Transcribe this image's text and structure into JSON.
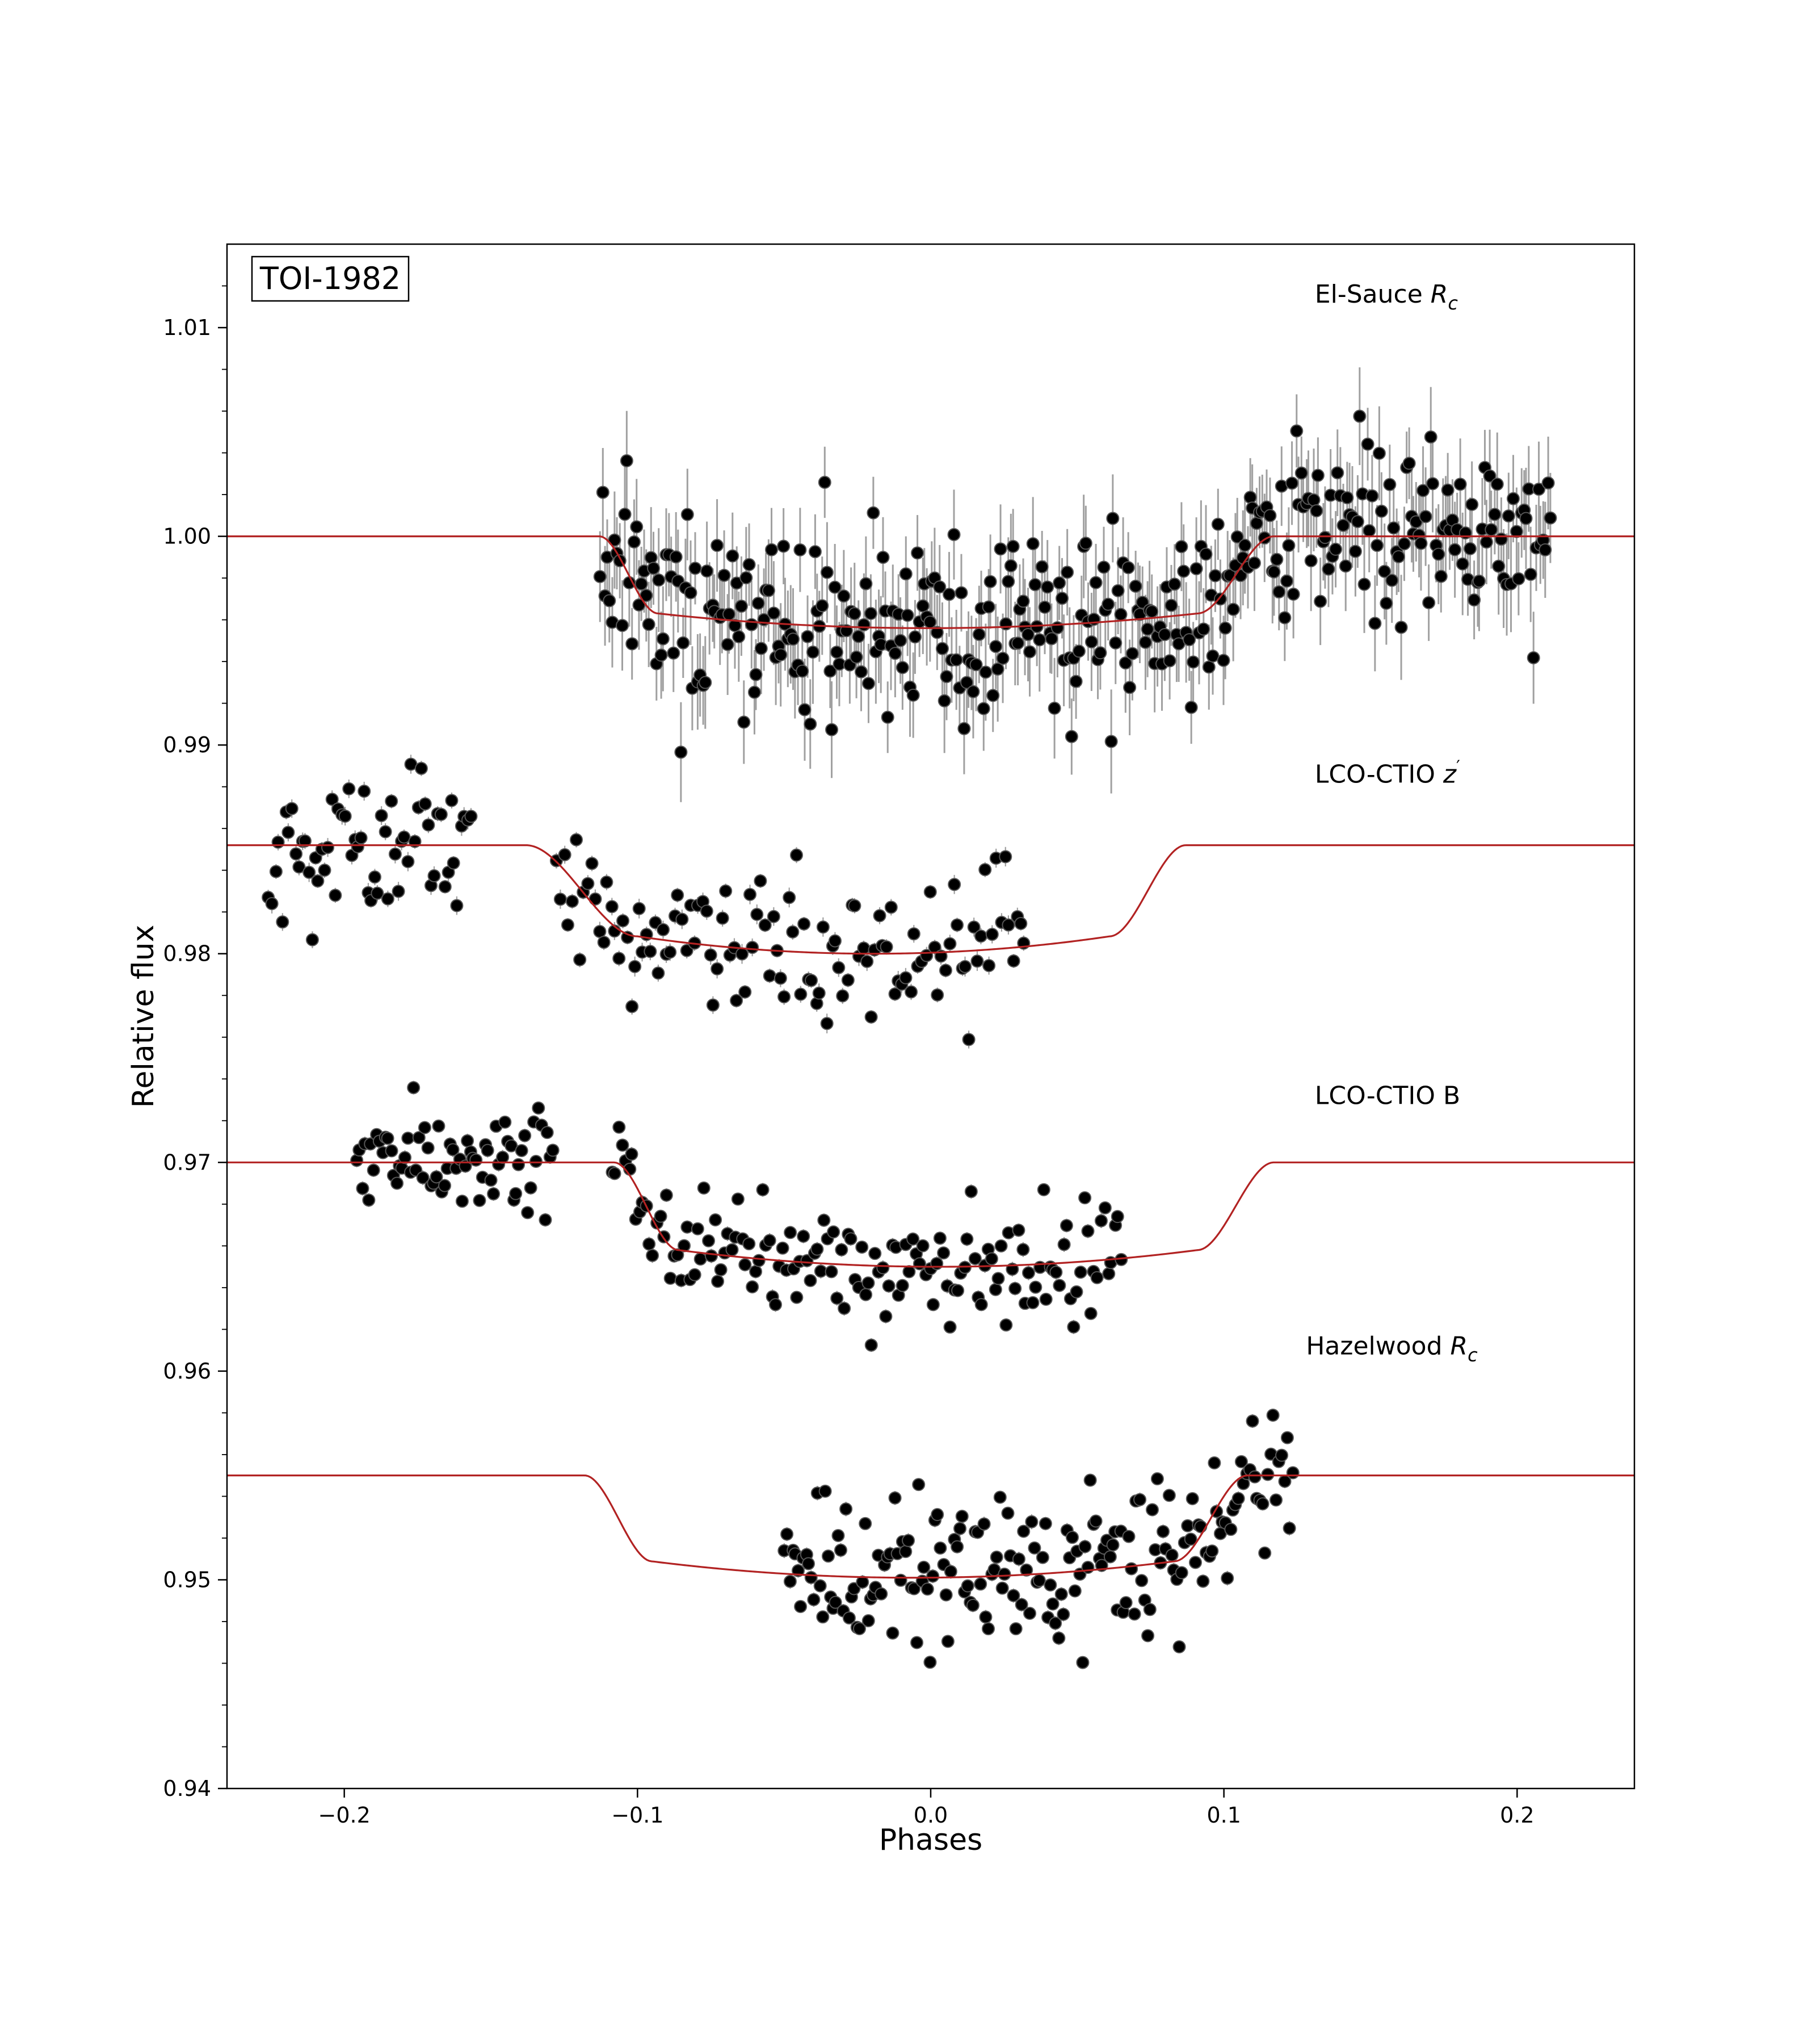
{
  "chart_data": {
    "type": "scatter",
    "title_box": "TOI-1982",
    "xlabel": "Phases",
    "ylabel": "Relative flux",
    "xlim": [
      -0.24,
      0.24
    ],
    "ylim": [
      0.94,
      1.014
    ],
    "xticks": [
      -0.2,
      -0.1,
      0.0,
      0.1,
      0.2
    ],
    "xtick_labels": [
      "−0.2",
      "−0.1",
      "0.0",
      "0.1",
      "0.2"
    ],
    "yticks": [
      0.94,
      0.95,
      0.96,
      0.97,
      0.98,
      0.99,
      1.0,
      1.01
    ],
    "ytick_labels": [
      "0.94",
      "0.95",
      "0.96",
      "0.97",
      "0.98",
      "0.99",
      "1.00",
      "1.01"
    ],
    "grid": false,
    "model_color": "#b22222",
    "point_color": "#000000",
    "errorbar_color": "#a0a0a0",
    "series": [
      {
        "name": "El-Sauce",
        "subscript": "c",
        "label_base": "R",
        "label_style": "italic-subscript",
        "label_anchor": [
          0.131,
          1.0112
        ],
        "baseline": 1.0,
        "depth": 0.0044,
        "ingress_start": -0.113,
        "ingress_end": -0.093,
        "egress_start": 0.091,
        "egress_end": 0.117,
        "x_range": [
          -0.113,
          0.212
        ],
        "n_points": 390,
        "scatter": 0.0022,
        "error": 0.0021,
        "seed": 11
      },
      {
        "name": "LCO-CTIO",
        "subscript": "′",
        "label_base": "z",
        "label_style": "italic-prime",
        "label_anchor": [
          0.131,
          0.9882
        ],
        "baseline": 0.9852,
        "depth": 0.0052,
        "ingress_start": -0.138,
        "ingress_end": -0.1,
        "egress_start": 0.061,
        "egress_end": 0.087,
        "segments": [
          [
            -0.226,
            -0.156,
            62
          ],
          [
            -0.128,
            0.033,
            120
          ]
        ],
        "scatter": 0.0016,
        "error": 0.0004,
        "seed": 23
      },
      {
        "name": "LCO-CTIO B",
        "subscript": "",
        "label_base": "",
        "label_style": "plain",
        "label_anchor": [
          0.131,
          0.9728
        ],
        "baseline": 0.97,
        "depth": 0.005,
        "ingress_start": -0.108,
        "ingress_end": -0.086,
        "egress_start": 0.091,
        "egress_end": 0.117,
        "segments": [
          [
            -0.196,
            -0.128,
            70
          ],
          [
            -0.109,
            0.066,
            150
          ]
        ],
        "scatter": 0.0013,
        "error": 0.0003,
        "seed": 37
      },
      {
        "name": "Hazelwood",
        "subscript": "c",
        "label_base": "R",
        "label_style": "italic-subscript",
        "label_anchor": [
          0.128,
          0.9608
        ],
        "baseline": 0.955,
        "depth": 0.0049,
        "ingress_start": -0.118,
        "ingress_end": -0.095,
        "egress_start": 0.083,
        "egress_end": 0.108,
        "segments": [
          [
            -0.05,
            0.124,
            190
          ]
        ],
        "scatter": 0.0019,
        "error": 0.0003,
        "seed": 53
      }
    ]
  }
}
